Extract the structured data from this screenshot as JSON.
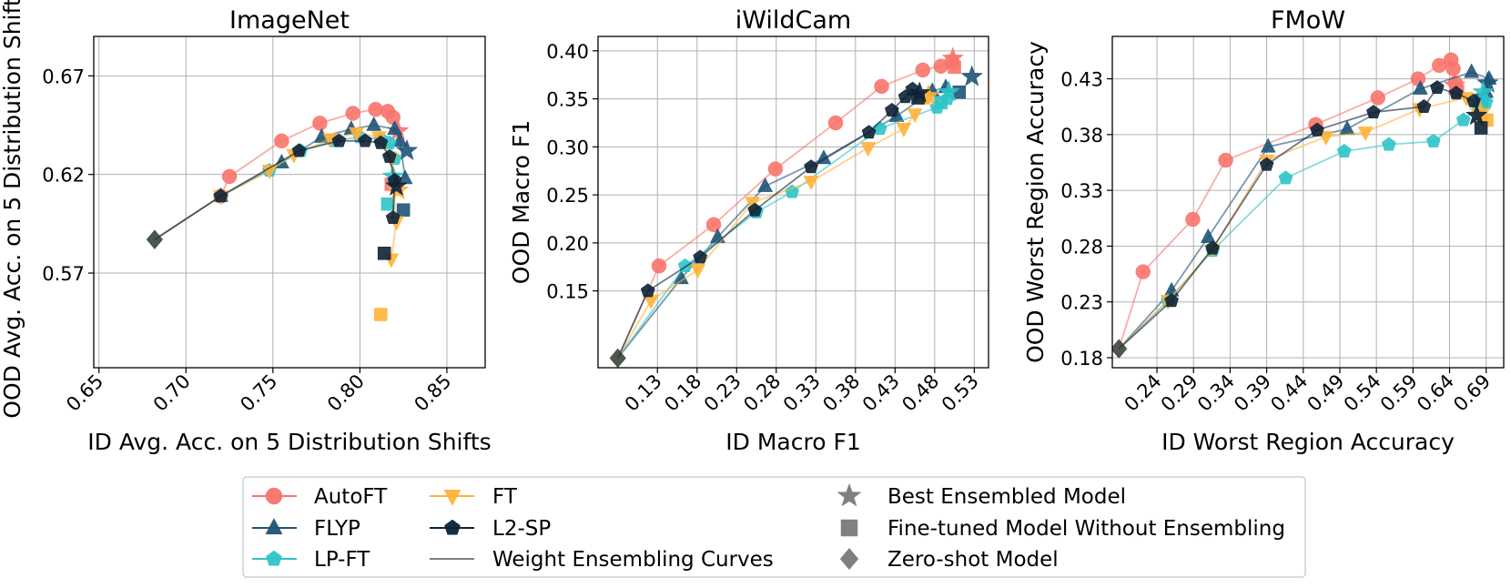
{
  "colors": {
    "AutoFT": "#f8746c",
    "FLYP": "#1f5377",
    "LP-FT": "#2ec4c6",
    "FT": "#ffb238",
    "L2-SP": "#0e2236",
    "grid": "#b0b0b0",
    "special": "#808080",
    "zero_shot": "#2f3a30"
  },
  "legend": {
    "methods": [
      {
        "name": "AutoFT",
        "marker": "circle"
      },
      {
        "name": "FLYP",
        "marker": "triangle-up"
      },
      {
        "name": "LP-FT",
        "marker": "pentagon"
      },
      {
        "name": "FT",
        "marker": "triangle-down"
      },
      {
        "name": "L2-SP",
        "marker": "pentagon"
      }
    ],
    "curves_label": "Weight Ensembling Curves",
    "markers": [
      {
        "name": "Best Ensembled Model",
        "marker": "star"
      },
      {
        "name": "Fine-tuned Model Without Ensembling",
        "marker": "square"
      },
      {
        "name": "Zero-shot Model",
        "marker": "diamond"
      }
    ]
  },
  "chart_data": [
    {
      "type": "line",
      "title": "ImageNet",
      "xlabel": "ID Avg. Acc. on 5 Distribution Shifts",
      "ylabel": "OOD Avg. Acc. on 5 Distribution Shifts",
      "xlim": [
        0.647,
        0.872
      ],
      "ylim": [
        0.522,
        0.69
      ],
      "xticks": [
        "0.65",
        "0.70",
        "0.75",
        "0.80",
        "0.85"
      ],
      "yticks": [
        "0.57",
        "0.62",
        "0.67"
      ],
      "zero_shot": [
        0.682,
        0.587
      ],
      "series": [
        {
          "name": "AutoFT",
          "points": [
            [
              0.682,
              0.587
            ],
            [
              0.72,
              0.609
            ],
            [
              0.725,
              0.619
            ],
            [
              0.755,
              0.637
            ],
            [
              0.777,
              0.646
            ],
            [
              0.796,
              0.651
            ],
            [
              0.809,
              0.653
            ],
            [
              0.816,
              0.652
            ],
            [
              0.819,
              0.649
            ]
          ],
          "best": [
            0.822,
            0.642
          ],
          "fine_tuned": [
            0.818,
            0.615
          ]
        },
        {
          "name": "FLYP",
          "points": [
            [
              0.682,
              0.587
            ],
            [
              0.72,
              0.609
            ],
            [
              0.755,
              0.626
            ],
            [
              0.778,
              0.639
            ],
            [
              0.795,
              0.643
            ],
            [
              0.808,
              0.645
            ],
            [
              0.82,
              0.643
            ],
            [
              0.823,
              0.637
            ],
            [
              0.826,
              0.618
            ]
          ],
          "best": [
            0.827,
            0.632
          ],
          "fine_tuned": [
            0.825,
            0.602
          ]
        },
        {
          "name": "LP-FT",
          "points": [
            [
              0.682,
              0.587
            ],
            [
              0.72,
              0.609
            ],
            [
              0.748,
              0.622
            ],
            [
              0.766,
              0.632
            ],
            [
              0.785,
              0.637
            ],
            [
              0.8,
              0.639
            ],
            [
              0.812,
              0.638
            ],
            [
              0.817,
              0.636
            ],
            [
              0.82,
              0.628
            ]
          ],
          "best": [
            0.819,
            0.619
          ],
          "fine_tuned": [
            0.816,
            0.605
          ]
        },
        {
          "name": "FT",
          "points": [
            [
              0.682,
              0.587
            ],
            [
              0.72,
              0.609
            ],
            [
              0.748,
              0.622
            ],
            [
              0.762,
              0.63
            ],
            [
              0.783,
              0.638
            ],
            [
              0.798,
              0.641
            ],
            [
              0.811,
              0.639
            ],
            [
              0.818,
              0.628
            ],
            [
              0.821,
              0.596
            ],
            [
              0.818,
              0.577
            ]
          ],
          "best": [
            0.822,
            0.612
          ],
          "fine_tuned": [
            0.812,
            0.549
          ]
        },
        {
          "name": "L2-SP",
          "points": [
            [
              0.682,
              0.587
            ],
            [
              0.72,
              0.609
            ],
            [
              0.765,
              0.632
            ],
            [
              0.788,
              0.637
            ],
            [
              0.803,
              0.637
            ],
            [
              0.812,
              0.636
            ],
            [
              0.817,
              0.629
            ],
            [
              0.82,
              0.617
            ],
            [
              0.819,
              0.598
            ]
          ],
          "best": [
            0.821,
            0.614
          ],
          "fine_tuned": [
            0.814,
            0.58
          ]
        }
      ]
    },
    {
      "type": "line",
      "title": "iWildCam",
      "xlabel": "ID Macro F1",
      "ylabel": "OOD Macro F1",
      "xlim": [
        0.055,
        0.548
      ],
      "ylim": [
        0.07,
        0.415
      ],
      "xticks": [
        "0.13",
        "0.18",
        "0.23",
        "0.28",
        "0.33",
        "0.38",
        "0.43",
        "0.48",
        "0.53"
      ],
      "yticks": [
        "0.15",
        "0.20",
        "0.25",
        "0.30",
        "0.35",
        "0.40"
      ],
      "zero_shot": [
        0.08,
        0.08
      ],
      "series": [
        {
          "name": "AutoFT",
          "points": [
            [
              0.08,
              0.08
            ],
            [
              0.132,
              0.176
            ],
            [
              0.201,
              0.219
            ],
            [
              0.279,
              0.277
            ],
            [
              0.355,
              0.325
            ],
            [
              0.413,
              0.363
            ],
            [
              0.465,
              0.38
            ],
            [
              0.488,
              0.384
            ],
            [
              0.502,
              0.389
            ]
          ],
          "best": [
            0.503,
            0.392
          ],
          "fine_tuned": [
            0.505,
            0.383
          ]
        },
        {
          "name": "FLYP",
          "points": [
            [
              0.08,
              0.08
            ],
            [
              0.16,
              0.163
            ],
            [
              0.206,
              0.206
            ],
            [
              0.266,
              0.259
            ],
            [
              0.34,
              0.288
            ],
            [
              0.432,
              0.332
            ],
            [
              0.477,
              0.358
            ],
            [
              0.494,
              0.362
            ]
          ],
          "best": [
            0.527,
            0.373
          ],
          "fine_tuned": [
            0.511,
            0.357
          ]
        },
        {
          "name": "LP-FT",
          "points": [
            [
              0.08,
              0.08
            ],
            [
              0.165,
              0.176
            ],
            [
              0.255,
              0.232
            ],
            [
              0.3,
              0.253
            ],
            [
              0.411,
              0.319
            ],
            [
              0.483,
              0.341
            ],
            [
              0.496,
              0.35
            ]
          ],
          "best": [
            0.498,
            0.357
          ],
          "fine_tuned": [
            0.488,
            0.346
          ]
        },
        {
          "name": "FT",
          "points": [
            [
              0.08,
              0.08
            ],
            [
              0.122,
              0.14
            ],
            [
              0.181,
              0.172
            ],
            [
              0.25,
              0.242
            ],
            [
              0.324,
              0.264
            ],
            [
              0.396,
              0.299
            ],
            [
              0.441,
              0.319
            ],
            [
              0.455,
              0.334
            ]
          ],
          "best": [
            0.472,
            0.353
          ],
          "fine_tuned": [
            0.466,
            0.351
          ]
        },
        {
          "name": "L2-SP",
          "points": [
            [
              0.08,
              0.08
            ],
            [
              0.118,
              0.15
            ],
            [
              0.184,
              0.185
            ],
            [
              0.253,
              0.234
            ],
            [
              0.324,
              0.279
            ],
            [
              0.397,
              0.315
            ],
            [
              0.426,
              0.338
            ],
            [
              0.443,
              0.352
            ],
            [
              0.452,
              0.36
            ]
          ],
          "best": [
            0.461,
            0.356
          ],
          "fine_tuned": [
            0.459,
            0.351
          ]
        }
      ]
    },
    {
      "type": "line",
      "title": "FMoW",
      "xlabel": "ID Worst Region Accuracy",
      "ylabel": "OOD Worst Region Accuracy",
      "xlim": [
        0.179,
        0.714
      ],
      "ylim": [
        0.171,
        0.468
      ],
      "xticks": [
        "0.24",
        "0.29",
        "0.34",
        "0.39",
        "0.44",
        "0.49",
        "0.54",
        "0.59",
        "0.64",
        "0.69"
      ],
      "yticks": [
        "0.18",
        "0.23",
        "0.28",
        "0.33",
        "0.38",
        "0.43"
      ],
      "zero_shot": [
        0.188,
        0.188
      ],
      "series": [
        {
          "name": "AutoFT",
          "points": [
            [
              0.188,
              0.188
            ],
            [
              0.221,
              0.257
            ],
            [
              0.289,
              0.304
            ],
            [
              0.334,
              0.357
            ],
            [
              0.457,
              0.389
            ],
            [
              0.542,
              0.413
            ],
            [
              0.597,
              0.43
            ],
            [
              0.626,
              0.442
            ],
            [
              0.642,
              0.447
            ],
            [
              0.645,
              0.439
            ],
            [
              0.648,
              0.426
            ]
          ],
          "best": [
            0.647,
            0.424
          ],
          "fine_tuned": [
            0.651,
            0.419
          ]
        },
        {
          "name": "FLYP",
          "points": [
            [
              0.188,
              0.188
            ],
            [
              0.26,
              0.24
            ],
            [
              0.31,
              0.288
            ],
            [
              0.392,
              0.369
            ],
            [
              0.5,
              0.385
            ],
            [
              0.6,
              0.421
            ],
            [
              0.67,
              0.436
            ],
            [
              0.694,
              0.43
            ],
            [
              0.69,
              0.418
            ]
          ],
          "best": [
            0.692,
            0.426
          ],
          "fine_tuned": [
            0.684,
            0.411
          ]
        },
        {
          "name": "LP-FT",
          "points": [
            [
              0.188,
              0.188
            ],
            [
              0.255,
              0.231
            ],
            [
              0.316,
              0.276
            ],
            [
              0.416,
              0.341
            ],
            [
              0.496,
              0.365
            ],
            [
              0.557,
              0.371
            ],
            [
              0.618,
              0.374
            ],
            [
              0.659,
              0.393
            ],
            [
              0.679,
              0.405
            ],
            [
              0.69,
              0.409
            ]
          ],
          "best": [
            0.686,
            0.418
          ],
          "fine_tuned": [
            0.683,
            0.406
          ]
        },
        {
          "name": "FT",
          "points": [
            [
              0.188,
              0.188
            ],
            [
              0.255,
              0.231
            ],
            [
              0.316,
              0.277
            ],
            [
              0.39,
              0.357
            ],
            [
              0.471,
              0.378
            ],
            [
              0.525,
              0.382
            ],
            [
              0.599,
              0.403
            ],
            [
              0.663,
              0.413
            ],
            [
              0.684,
              0.394
            ]
          ],
          "best": [
            0.682,
            0.4
          ],
          "fine_tuned": [
            0.691,
            0.393
          ]
        },
        {
          "name": "L2-SP",
          "points": [
            [
              0.188,
              0.188
            ],
            [
              0.26,
              0.231
            ],
            [
              0.316,
              0.278
            ],
            [
              0.39,
              0.353
            ],
            [
              0.459,
              0.384
            ],
            [
              0.536,
              0.4
            ],
            [
              0.605,
              0.405
            ],
            [
              0.623,
              0.422
            ],
            [
              0.649,
              0.417
            ],
            [
              0.673,
              0.41
            ]
          ],
          "best": [
            0.677,
            0.397
          ],
          "fine_tuned": [
            0.683,
            0.386
          ]
        }
      ]
    }
  ]
}
